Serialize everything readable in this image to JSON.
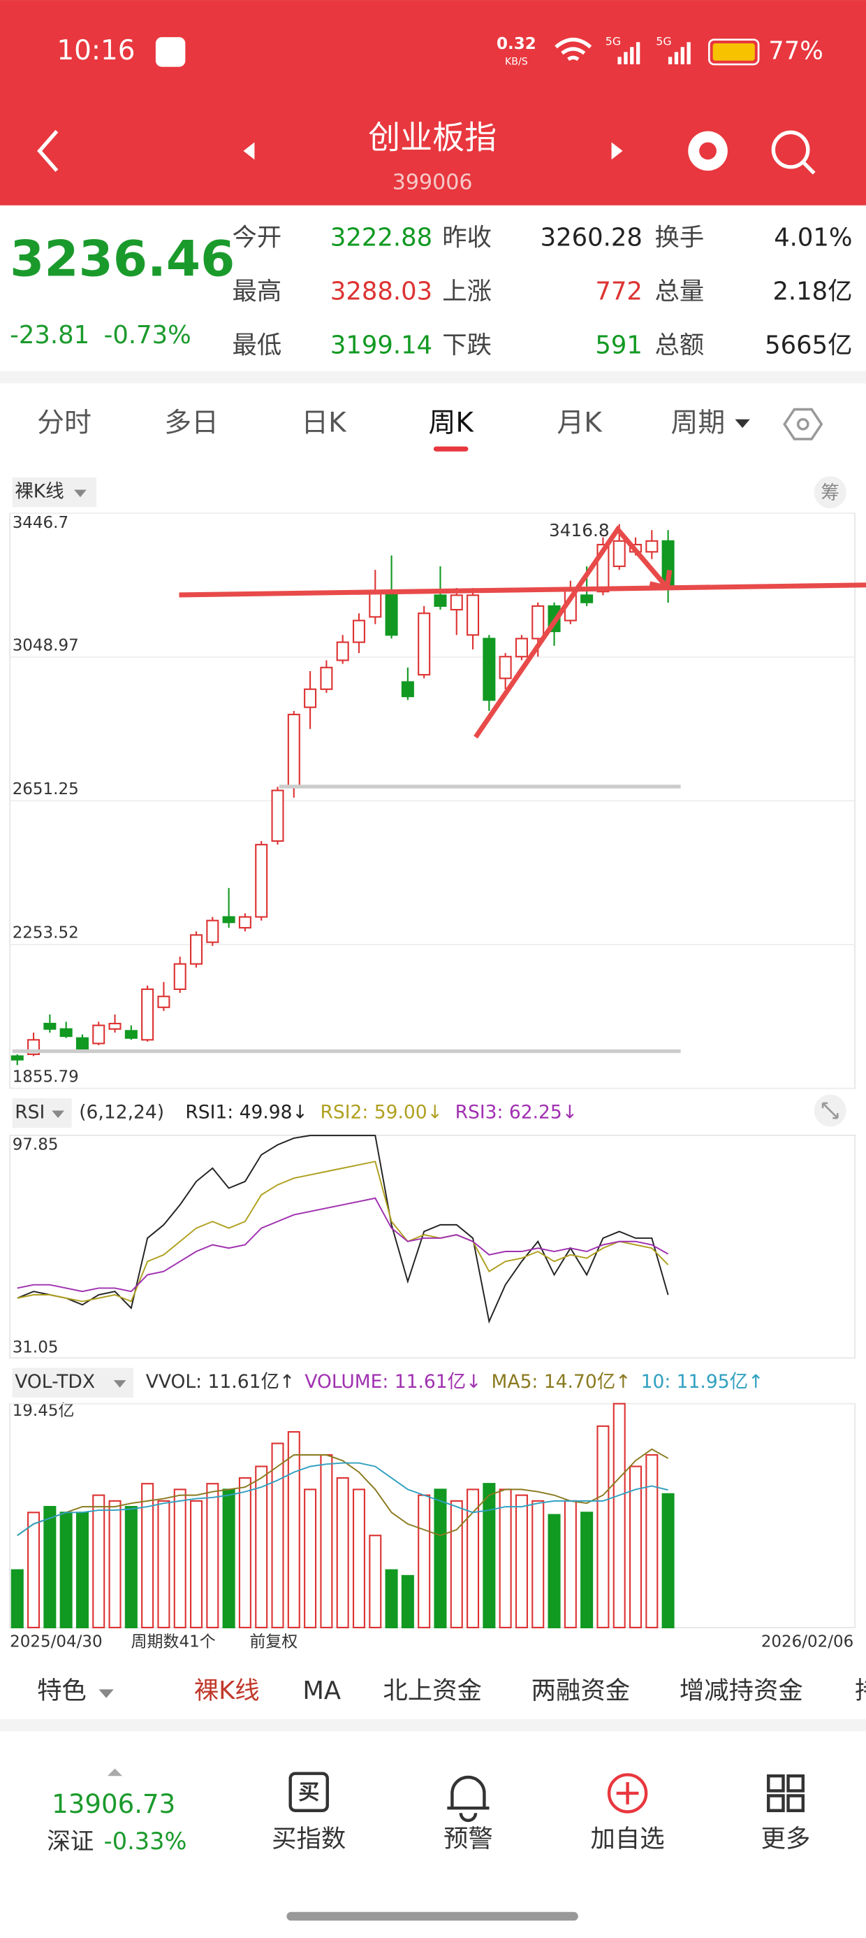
{
  "status": {
    "time": "10:16",
    "speed": "0.32",
    "speed_unit": "KB/S",
    "net1": "5G",
    "net2": "5G",
    "battery": "77%"
  },
  "header": {
    "title": "创业板指",
    "code": "399006"
  },
  "quote": {
    "price": "3236.46",
    "change": "-23.81",
    "pct": "-0.73%",
    "stats": [
      [
        "今开",
        "3222.88",
        "昨收",
        "3260.28",
        "换手",
        "4.01%"
      ],
      [
        "最高",
        "3288.03",
        "上涨",
        "772",
        "总量",
        "2.18亿"
      ],
      [
        "最低",
        "3199.14",
        "下跌",
        "591",
        "总额",
        "5665亿"
      ]
    ]
  },
  "tabs": [
    "分时",
    "多日",
    "日K",
    "周K",
    "月K",
    "周期"
  ],
  "kline": {
    "label": "裸K线",
    "chip": "筹",
    "ylim": [
      1855.79,
      3446.7
    ],
    "yticks": [
      1855.79,
      2253.52,
      2651.25,
      3048.97,
      3446.7
    ],
    "max_label": "3416.8",
    "candles": {
      "open": [
        1945,
        1950,
        2035,
        2020,
        1995,
        1980,
        2020,
        2015,
        1990,
        2080,
        2130,
        2200,
        2260,
        2330,
        2300,
        2330,
        2540,
        2690,
        2910,
        2960,
        3040,
        3090,
        3160,
        3230,
        2980,
        3000,
        3220,
        3180,
        3110,
        3100,
        2990,
        3050,
        3100,
        3190,
        3150,
        3220,
        3230,
        3300,
        3340,
        3340,
        3370
      ],
      "high": [
        1950,
        2010,
        2060,
        2040,
        2005,
        2040,
        2060,
        2030,
        2140,
        2150,
        2220,
        2290,
        2330,
        2410,
        2340,
        2540,
        2690,
        2900,
        3010,
        3040,
        3110,
        3170,
        3290,
        3330,
        3020,
        3190,
        3300,
        3240,
        3240,
        3110,
        3060,
        3110,
        3200,
        3200,
        3260,
        3300,
        3380,
        3416.8,
        3380,
        3400,
        3400
      ],
      "low": [
        1920,
        1945,
        2010,
        1995,
        1955,
        1975,
        2010,
        1990,
        1985,
        2070,
        2120,
        2190,
        2250,
        2300,
        2290,
        2320,
        2530,
        2660,
        2850,
        2950,
        3030,
        3060,
        3140,
        3100,
        2930,
        2990,
        3180,
        3110,
        3070,
        2900,
        2960,
        3040,
        3050,
        3080,
        3140,
        3190,
        3220,
        3290,
        3330,
        3320,
        3199.14
      ],
      "close": [
        1935,
        1990,
        2020,
        2000,
        1965,
        2030,
        2035,
        1995,
        2130,
        2110,
        2200,
        2280,
        2320,
        2315,
        2330,
        2530,
        2680,
        2890,
        2960,
        3020,
        3090,
        3150,
        3230,
        3110,
        2940,
        3170,
        3190,
        3220,
        3220,
        2930,
        3050,
        3100,
        3190,
        3120,
        3240,
        3200,
        3360,
        3370,
        3360,
        3370,
        3236.46
      ]
    }
  },
  "rsi": {
    "label": "RSI",
    "params": "(6,12,24)",
    "ylim": [
      31.05,
      97.85
    ],
    "yticks": [
      31.05,
      97.85
    ],
    "series": [
      {
        "name": "RSI1: 49.98↓",
        "color": "#222222",
        "values": [
          49,
          51,
          50,
          49,
          47,
          50,
          51,
          46,
          67,
          71,
          77,
          84,
          88,
          82,
          84,
          92,
          95,
          97,
          97.8,
          97.8,
          97.8,
          97.8,
          97.8,
          71,
          54,
          69,
          71,
          71,
          67,
          42,
          53,
          60,
          66,
          56,
          64,
          56,
          67,
          69,
          67,
          67,
          49.98
        ]
      },
      {
        "name": "RSI2: 59.00↓",
        "color": "#b0a020",
        "values": [
          49,
          50,
          50,
          49,
          48,
          49,
          50,
          48,
          60,
          62,
          66,
          70,
          72,
          70,
          72,
          80,
          83,
          85,
          86,
          87,
          88,
          89,
          90,
          72,
          66,
          68,
          67,
          68,
          66,
          57,
          60,
          61,
          63,
          60,
          62,
          61,
          64,
          66,
          65,
          64,
          59.0
        ]
      },
      {
        "name": "RSI3: 62.25↓",
        "color": "#a030b0",
        "values": [
          52,
          53,
          53,
          52,
          51,
          52,
          52,
          51,
          56,
          57,
          60,
          63,
          65,
          64,
          65,
          70,
          72,
          74,
          75,
          76,
          77,
          78,
          79,
          70,
          66,
          67,
          67,
          68,
          66,
          62,
          63,
          63,
          64,
          63,
          64,
          63,
          65,
          66,
          66,
          65,
          62.25
        ]
      }
    ]
  },
  "vol": {
    "label": "VOL-TDX",
    "ylim": [
      0,
      19.45
    ],
    "yticks": [
      {
        "value": 19.45,
        "label": "19.45亿"
      }
    ],
    "legend": [
      {
        "text": "VVOL: 11.61亿↑",
        "color": "#333333"
      },
      {
        "text": "VOLUME: 11.61亿↓",
        "color": "#a030b0"
      }
    ],
    "values": [
      5,
      10,
      10.5,
      10,
      10,
      11.5,
      11,
      10.5,
      12.5,
      11,
      12,
      11,
      12.5,
      12,
      13,
      14,
      16,
      17,
      12,
      15,
      13,
      12,
      8,
      5,
      4.5,
      11.5,
      12,
      11,
      12,
      12.5,
      12,
      11.5,
      11,
      9.8,
      11,
      10,
      17.5,
      19.45,
      14,
      15,
      11.61
    ],
    "series": [
      {
        "name": "MA5: 14.70亿↑",
        "color": "#8a7a20",
        "values": [
          8,
          9,
          9.5,
          10,
          10.5,
          10.5,
          10.5,
          10.8,
          11,
          11.2,
          11.5,
          11.5,
          11.8,
          12,
          12.2,
          13,
          14,
          15,
          15,
          15,
          14.5,
          13.5,
          12,
          10,
          9,
          8.5,
          8,
          8.5,
          10,
          11.5,
          12,
          12,
          11.8,
          11.5,
          11,
          10.8,
          11.5,
          13,
          14.5,
          15.5,
          14.7
        ]
      },
      {
        "name": "10: 11.95亿↑",
        "color": "#30a0c0",
        "values": [
          8,
          9,
          9.5,
          10,
          10,
          10.2,
          10.2,
          10.3,
          10.5,
          10.8,
          11,
          11.2,
          11.3,
          11.5,
          11.8,
          12.2,
          12.8,
          13.5,
          14,
          14.2,
          14.3,
          14.3,
          14,
          13,
          12,
          11.5,
          11,
          10.5,
          10,
          10.2,
          10.5,
          10.5,
          10.8,
          11,
          11,
          11,
          11,
          11.5,
          12,
          12.3,
          11.95
        ]
      }
    ]
  },
  "footer": {
    "start": "2025/04/30",
    "count": "周期数41个",
    "adjust": "前复权",
    "end": "2026/02/06"
  },
  "indicator_tabs": [
    "特色",
    "裸K线",
    "MA",
    "北上资金",
    "两融资金",
    "增减持资金",
    "持"
  ],
  "bottom": {
    "index_value": "13906.73",
    "index_name": "深证",
    "index_pct": "-0.33%",
    "buttons": [
      "买指数",
      "预警",
      "加自选",
      "更多"
    ],
    "buy_icon": "买"
  }
}
